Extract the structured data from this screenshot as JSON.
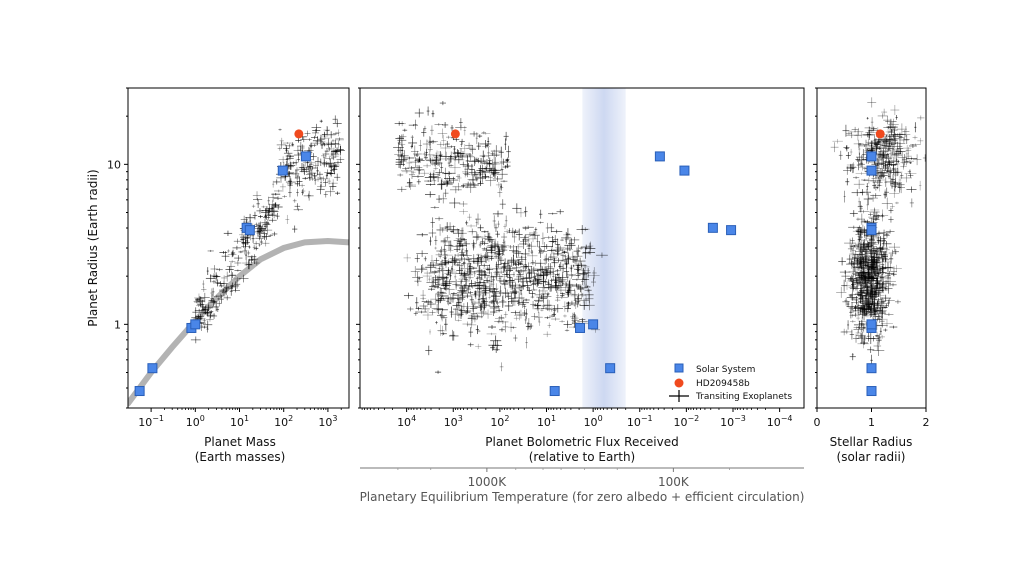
{
  "chart_data": [
    {
      "type": "scatter",
      "xlabel": "Planet Mass",
      "xlabel2": "(Earth masses)",
      "ylabel": "Planet Radius (Earth radii)",
      "xscale": "log",
      "yscale": "log",
      "xlim": [
        0.03,
        3000
      ],
      "ylim": [
        0.3,
        30
      ],
      "xticks": [
        "10^-1",
        "10^0",
        "10^1",
        "10^2",
        "10^3"
      ],
      "yticks": [
        "1",
        "10"
      ],
      "series": [
        {
          "name": "Solar System",
          "x": [
            0.055,
            0.815,
            1.0,
            0.107,
            14.5,
            17.1,
            95.2,
            317.8
          ],
          "y": [
            0.383,
            0.949,
            1.0,
            0.532,
            4.01,
            3.88,
            9.14,
            11.21
          ]
        },
        {
          "name": "HD209458b",
          "x": [
            220
          ],
          "y": [
            15.5
          ]
        }
      ],
      "curve": {
        "x": [
          0.03,
          0.1,
          0.3,
          1,
          3,
          10,
          30,
          100,
          300,
          1000,
          3000
        ],
        "y": [
          0.32,
          0.5,
          0.72,
          1.05,
          1.45,
          2.0,
          2.55,
          3.0,
          3.25,
          3.32,
          3.25
        ]
      }
    },
    {
      "type": "scatter",
      "xlabel": "Planet Bolometric Flux Received",
      "xlabel2": "(relative to Earth)",
      "xscale": "log",
      "xreversed": true,
      "yscale": "log",
      "xlim": [
        100000,
        3e-05
      ],
      "ylim": [
        0.3,
        30
      ],
      "xticks": [
        "10^4",
        "10^3",
        "10^2",
        "10^1",
        "10^0",
        "10^-1",
        "10^-2",
        "10^-3",
        "10^-4"
      ],
      "highlight_band": [
        0.2,
        1.7
      ],
      "series": [
        {
          "name": "Solar System",
          "x": [
            6.67,
            1.91,
            1.0,
            0.431,
            0.037,
            0.011,
            0.0027,
            0.0011
          ],
          "y": [
            0.383,
            0.949,
            1.0,
            0.532,
            11.21,
            9.14,
            4.01,
            3.88
          ]
        },
        {
          "name": "HD209458b",
          "x": [
            900
          ],
          "y": [
            15.5
          ]
        },
        {
          "name": "Transiting Exoplanets"
        }
      ],
      "secondary_axis": {
        "label": "Planetary Equilibrium Temperature (for zero albedo + efficient circulation)",
        "ticks": [
          "1000K",
          "100K"
        ]
      }
    },
    {
      "type": "scatter",
      "xlabel": "Stellar Radius",
      "xlabel2": "(solar radii)",
      "xlim": [
        0,
        2
      ],
      "ylim": [
        0.3,
        30
      ],
      "xticks": [
        "0",
        "1",
        "2"
      ],
      "series": [
        {
          "name": "Solar System",
          "x": [
            1,
            1,
            1,
            1,
            1,
            1,
            1,
            1
          ],
          "y": [
            0.383,
            0.949,
            1.0,
            0.532,
            11.21,
            9.14,
            4.01,
            3.88
          ]
        },
        {
          "name": "HD209458b",
          "x": [
            1.16
          ],
          "y": [
            15.5
          ]
        }
      ]
    }
  ],
  "legend": {
    "solar": "Solar System",
    "hd": "HD209458b",
    "transit": "Transiting Exoplanets"
  },
  "colors": {
    "solar": "#4a86e8",
    "solar_edge": "#2a5fb8",
    "hd": "#f04a1e",
    "band": "#c8d4f0",
    "points": "#000000",
    "curve": "#b3b3b3"
  }
}
